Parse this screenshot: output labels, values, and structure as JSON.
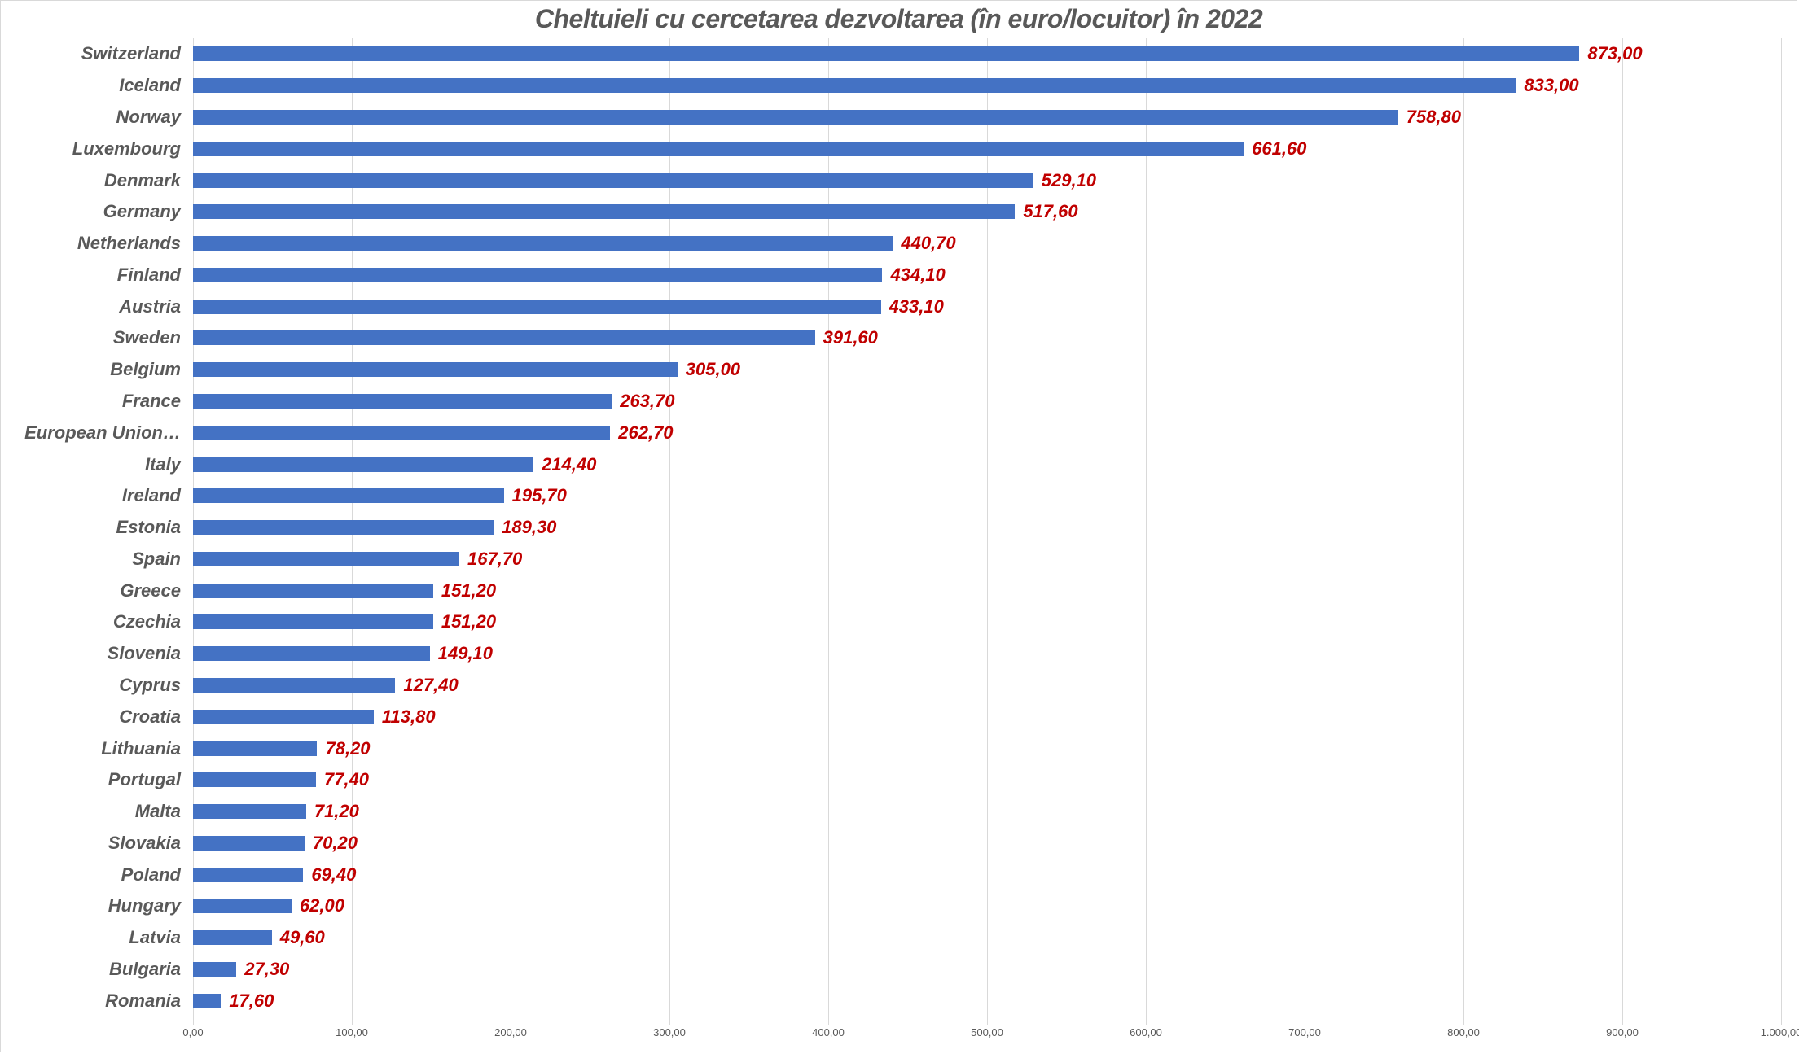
{
  "frame": {
    "background": "#ffffff",
    "border_color": "#d9d9d9"
  },
  "chart_data": {
    "type": "bar",
    "orientation": "horizontal",
    "title": "Cheltuieli cu cercetarea dezvoltarea (în euro/locuitor) în 2022",
    "categories": [
      "Switzerland",
      "Iceland",
      "Norway",
      "Luxembourg",
      "Denmark",
      "Germany",
      "Netherlands",
      "Finland",
      "Austria",
      "Sweden",
      "Belgium",
      "France",
      "European Union…",
      "Italy",
      "Ireland",
      "Estonia",
      "Spain",
      "Greece",
      "Czechia",
      "Slovenia",
      "Cyprus",
      "Croatia",
      "Lithuania",
      "Portugal",
      "Malta",
      "Slovakia",
      "Poland",
      "Hungary",
      "Latvia",
      "Bulgaria",
      "Romania"
    ],
    "values": [
      873.0,
      833.0,
      758.8,
      661.6,
      529.1,
      517.6,
      440.7,
      434.1,
      433.1,
      391.6,
      305.0,
      263.7,
      262.7,
      214.4,
      195.7,
      189.3,
      167.7,
      151.2,
      151.2,
      149.1,
      127.4,
      113.8,
      78.2,
      77.4,
      71.2,
      70.2,
      69.4,
      62.0,
      49.6,
      27.3,
      17.6
    ],
    "value_labels": [
      "873,00",
      "833,00",
      "758,80",
      "661,60",
      "529,10",
      "517,60",
      "440,70",
      "434,10",
      "433,10",
      "391,60",
      "305,00",
      "263,70",
      "262,70",
      "214,40",
      "195,70",
      "189,30",
      "167,70",
      "151,20",
      "151,20",
      "149,10",
      "127,40",
      "113,80",
      "78,20",
      "77,40",
      "71,20",
      "70,20",
      "69,40",
      "62,00",
      "49,60",
      "27,30",
      "17,60"
    ],
    "xlabel": "",
    "ylabel": "",
    "xlim": [
      0,
      1000
    ],
    "x_ticks": [
      0,
      100,
      200,
      300,
      400,
      500,
      600,
      700,
      800,
      900,
      1000
    ],
    "x_tick_labels": [
      "0,00",
      "100,00",
      "200,00",
      "300,00",
      "400,00",
      "500,00",
      "600,00",
      "700,00",
      "800,00",
      "900,00",
      "1.000,00"
    ],
    "grid": true,
    "legend": false,
    "bar_color": "#4472C4",
    "value_label_color": "#C00000",
    "category_label_color": "#595959",
    "title_color": "#595959",
    "axis_label_color": "#595959",
    "gridline_color": "#D9D9D9"
  }
}
